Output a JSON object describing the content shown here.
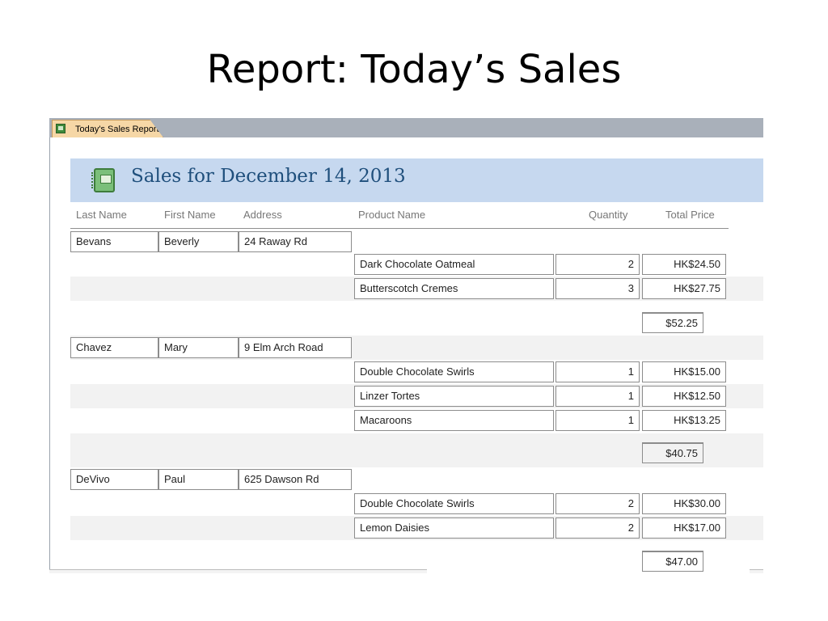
{
  "slide": {
    "title": "Report: Today’s Sales"
  },
  "tab": {
    "label": "Today's Sales Report",
    "icon": "report-icon"
  },
  "report": {
    "title": "Sales for December 14, 2013",
    "icon": "notebook-icon",
    "columns": [
      "Last Name",
      "First Name",
      "Address",
      "Product Name",
      "Quantity",
      "Total Price"
    ],
    "groups": [
      {
        "last_name": "Bevans",
        "first_name": "Beverly",
        "address": "24 Raway Rd",
        "items": [
          {
            "product": "Dark Chocolate Oatmeal",
            "quantity": "2",
            "price": "HK$24.50"
          },
          {
            "product": "Butterscotch Cremes",
            "quantity": "3",
            "price": "HK$27.75"
          }
        ],
        "total": "$52.25"
      },
      {
        "last_name": "Chavez",
        "first_name": "Mary",
        "address": "9 Elm Arch Road",
        "items": [
          {
            "product": "Double Chocolate Swirls",
            "quantity": "1",
            "price": "HK$15.00"
          },
          {
            "product": "Linzer Tortes",
            "quantity": "1",
            "price": "HK$12.50"
          },
          {
            "product": "Macaroons",
            "quantity": "1",
            "price": "HK$13.25"
          }
        ],
        "total": "$40.75"
      },
      {
        "last_name": "DeVivo",
        "first_name": "Paul",
        "address": "625 Dawson Rd",
        "items": [
          {
            "product": "Double Chocolate Swirls",
            "quantity": "2",
            "price": "HK$30.00"
          },
          {
            "product": "Lemon Daisies",
            "quantity": "2",
            "price": "HK$17.00"
          }
        ],
        "total": "$47.00"
      }
    ]
  },
  "colors": {
    "header_band": "#c6d8ef",
    "title_text": "#1f4f7c",
    "tab": "#f6d7a6",
    "tabstrip": "#a9b0ba"
  }
}
